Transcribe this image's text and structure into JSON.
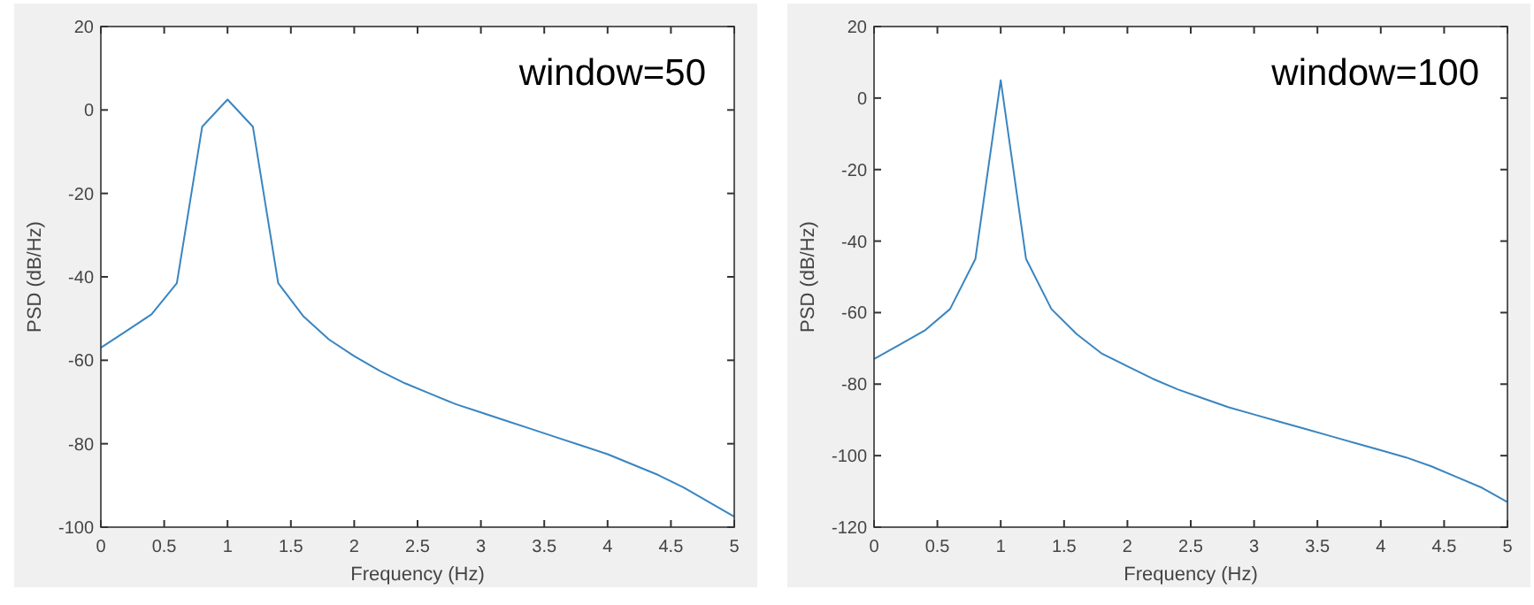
{
  "chart_data": [
    {
      "type": "line",
      "xlabel": "Frequency (Hz)",
      "ylabel": "PSD (dB/Hz)",
      "annotations": [
        "window=50"
      ],
      "xlim": [
        0,
        5
      ],
      "ylim": [
        -100,
        20
      ],
      "xticks": [
        0,
        0.5,
        1,
        1.5,
        2,
        2.5,
        3,
        3.5,
        4,
        4.5,
        5
      ],
      "yticks": [
        -100,
        -80,
        -60,
        -40,
        -20,
        0,
        20
      ],
      "grid": false,
      "x": [
        0,
        0.2,
        0.4,
        0.6,
        0.8,
        1,
        1.2,
        1.4,
        1.6,
        1.8,
        2,
        2.2,
        2.4,
        2.6,
        2.8,
        3,
        3.2,
        3.4,
        3.6,
        3.8,
        4,
        4.2,
        4.4,
        4.6,
        4.8,
        5
      ],
      "series": [
        {
          "color": "#3a85c0",
          "values": [
            -57,
            -53,
            -49,
            -41.5,
            -4,
            2.5,
            -4,
            -41.5,
            -49.5,
            -55,
            -59,
            -62.5,
            -65.5,
            -68,
            -70.5,
            -72.5,
            -74.5,
            -76.5,
            -78.5,
            -80.5,
            -82.5,
            -85,
            -87.5,
            -90.5,
            -94,
            -97.5
          ]
        }
      ]
    },
    {
      "type": "line",
      "xlabel": "Frequency (Hz)",
      "ylabel": "PSD (dB/Hz)",
      "annotations": [
        "window=100"
      ],
      "xlim": [
        0,
        5
      ],
      "ylim": [
        -120,
        20
      ],
      "xticks": [
        0,
        0.5,
        1,
        1.5,
        2,
        2.5,
        3,
        3.5,
        4,
        4.5,
        5
      ],
      "yticks": [
        -120,
        -100,
        -80,
        -60,
        -40,
        -20,
        0,
        20
      ],
      "grid": false,
      "x": [
        0,
        0.2,
        0.4,
        0.6,
        0.8,
        1,
        1.2,
        1.4,
        1.6,
        1.8,
        2,
        2.2,
        2.4,
        2.6,
        2.8,
        3,
        3.2,
        3.4,
        3.6,
        3.8,
        4,
        4.2,
        4.4,
        4.6,
        4.8,
        5
      ],
      "series": [
        {
          "color": "#3a85c0",
          "values": [
            -73,
            -69,
            -65,
            -59,
            -45,
            5,
            -45,
            -59,
            -66,
            -71.5,
            -75,
            -78.5,
            -81.5,
            -84,
            -86.5,
            -88.5,
            -90.5,
            -92.5,
            -94.5,
            -96.5,
            -98.5,
            -100.5,
            -103,
            -106,
            -109,
            -113
          ]
        }
      ]
    }
  ]
}
